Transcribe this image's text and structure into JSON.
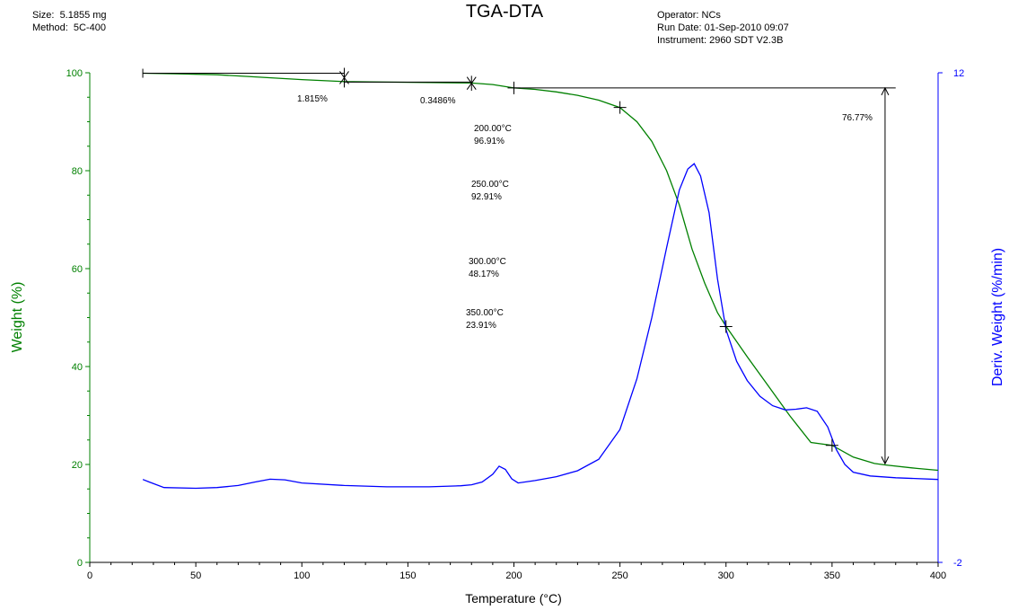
{
  "header": {
    "size": "Size:  5.1855 mg",
    "method": "Method:  5C-400",
    "title": "TGA-DTA",
    "operator": "Operator: NCs",
    "run_date": "Run Date: 01-Sep-2010 09:07",
    "instrument": "Instrument: 2960 SDT V2.3B"
  },
  "chart_data": {
    "type": "line",
    "title": "TGA-DTA",
    "xlabel": "Temperature (°C)",
    "ylabel_left": "Weight (%)",
    "ylabel_right": "Deriv. Weight (%/min)",
    "xlim": [
      0,
      400
    ],
    "ylim_left": [
      0,
      100
    ],
    "ylim_right": [
      -2,
      12
    ],
    "x_ticks": [
      0,
      50,
      100,
      150,
      200,
      250,
      300,
      350,
      400
    ],
    "y_ticks_left": [
      0,
      20,
      40,
      60,
      80,
      100
    ],
    "y_ticks_right": [
      -2,
      12
    ],
    "grid": false,
    "colors": {
      "weight": "#008000",
      "deriv": "#0000ff",
      "axis": "#000000"
    },
    "series": [
      {
        "axis": "left",
        "x": [
          25,
          40,
          60,
          80,
          100,
          120,
          140,
          160,
          180,
          190,
          200,
          210,
          220,
          230,
          240,
          250,
          258,
          265,
          272,
          278,
          284,
          290,
          296,
          300,
          310,
          320,
          330,
          340,
          350,
          360,
          370,
          375,
          390,
          400
        ],
        "values": [
          99.9,
          99.8,
          99.6,
          99.1,
          98.6,
          98.2,
          98.1,
          98.0,
          97.9,
          97.6,
          96.9,
          96.6,
          96.1,
          95.4,
          94.4,
          92.9,
          90.0,
          86.0,
          80.0,
          73.0,
          64.0,
          57.0,
          51.0,
          48.2,
          42.0,
          36.0,
          30.0,
          24.5,
          23.9,
          21.5,
          20.2,
          19.9,
          19.2,
          18.8
        ]
      },
      {
        "axis": "right",
        "x": [
          25,
          28,
          35,
          50,
          60,
          70,
          78,
          85,
          92,
          100,
          120,
          140,
          160,
          175,
          180,
          185,
          190,
          193,
          196,
          199,
          202,
          210,
          220,
          230,
          240,
          250,
          258,
          265,
          272,
          278,
          282,
          285,
          288,
          292,
          296,
          300,
          305,
          310,
          316,
          322,
          328,
          333,
          338,
          343,
          348,
          352,
          356,
          360,
          368,
          380,
          400
        ],
        "values": [
          0.37,
          0.3,
          0.14,
          0.12,
          0.14,
          0.2,
          0.3,
          0.38,
          0.36,
          0.27,
          0.2,
          0.16,
          0.16,
          0.19,
          0.22,
          0.3,
          0.52,
          0.75,
          0.66,
          0.39,
          0.27,
          0.34,
          0.45,
          0.62,
          0.95,
          1.8,
          3.25,
          5.0,
          7.0,
          8.65,
          9.25,
          9.4,
          9.05,
          8.0,
          6.1,
          4.65,
          3.75,
          3.2,
          2.75,
          2.48,
          2.36,
          2.38,
          2.42,
          2.32,
          1.87,
          1.23,
          0.8,
          0.58,
          0.47,
          0.42,
          0.37
        ]
      }
    ],
    "markers": [
      {
        "x": 200,
        "y": 96.91
      },
      {
        "x": 250,
        "y": 92.91
      },
      {
        "x": 300,
        "y": 48.17
      },
      {
        "x": 350,
        "y": 23.91
      }
    ],
    "step_points": [
      {
        "x": 120,
        "y": 99.9
      },
      {
        "x": 120,
        "y": 98.1
      },
      {
        "x": 180,
        "y": 98.1
      },
      {
        "x": 180,
        "y": 97.6
      }
    ],
    "annotations": {
      "step1": "1.815%",
      "step2": "0.3486%",
      "step3": "76.77%",
      "p200_t": "200.00°C",
      "p200_w": "96.91%",
      "p250_t": "250.00°C",
      "p250_w": "92.91%",
      "p300_t": "300.00°C",
      "p300_w": "48.17%",
      "p350_t": "350.00°C",
      "p350_w": "23.91%"
    }
  }
}
